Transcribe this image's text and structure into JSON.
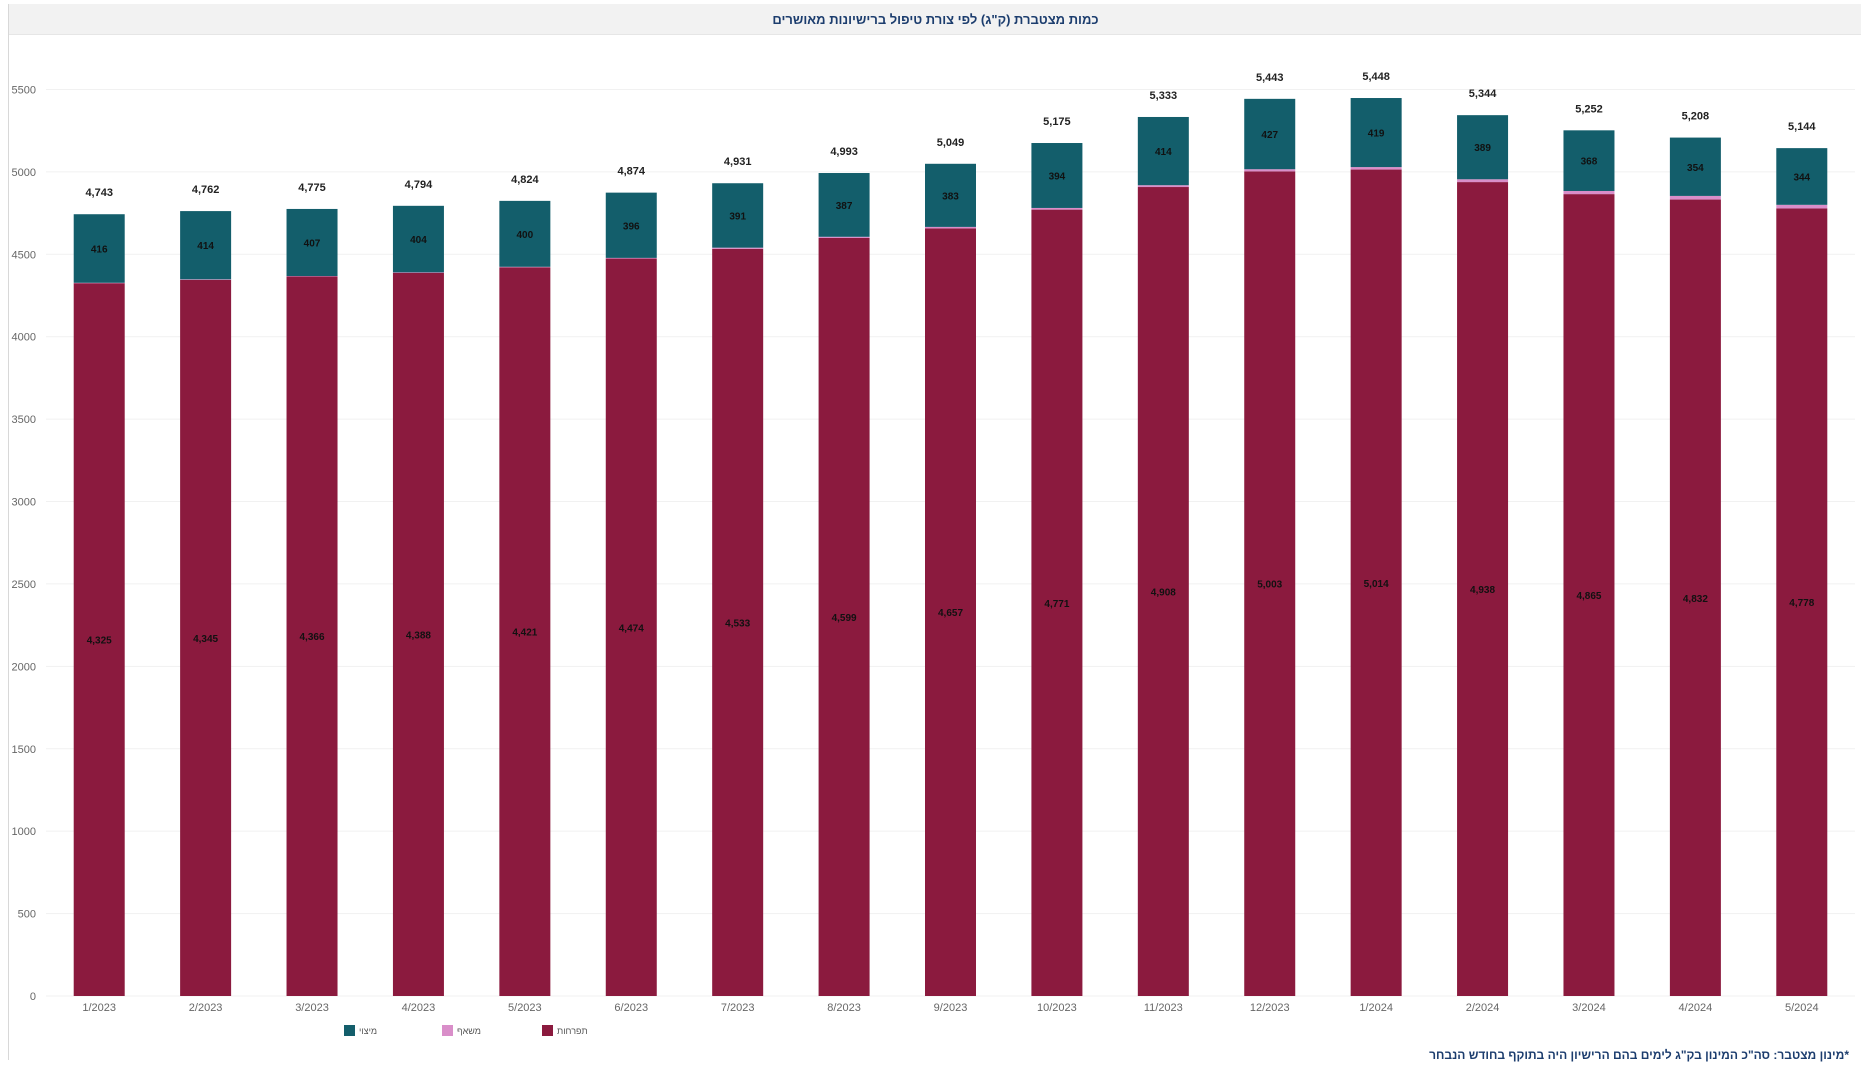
{
  "footnote": "*מינון מצטבר: סה\"כ המינון בק\"ג לימים בהם הרישיון היה בתוקף בחודש הנבחר",
  "chart_data": {
    "type": "bar",
    "stacked": true,
    "title": "כמות מצטברת (ק\"ג) לפי צורת טיפול ברישיונות מאושרים",
    "ylim": [
      0,
      5800
    ],
    "yticks": [
      0,
      500,
      1000,
      1500,
      2000,
      2500,
      3000,
      3500,
      4000,
      4500,
      5000,
      5500
    ],
    "grid": true,
    "legend_position": "bottom-left",
    "categories": [
      "1/2023",
      "2/2023",
      "3/2023",
      "4/2023",
      "5/2023",
      "6/2023",
      "7/2023",
      "8/2023",
      "9/2023",
      "10/2023",
      "11/2023",
      "12/2023",
      "1/2024",
      "2/2024",
      "3/2024",
      "4/2024",
      "5/2024"
    ],
    "series": [
      {
        "name": "תפרחות",
        "color": "#8b1a3e",
        "values": [
          4325,
          4345,
          4366,
          4388,
          4421,
          4474,
          4533,
          4599,
          4657,
          4771,
          4908,
          5003,
          5014,
          4938,
          4865,
          4832,
          4778
        ]
      },
      {
        "name": "משאף",
        "color": "#d98ec9",
        "values": [
          2,
          3,
          2,
          2,
          3,
          4,
          7,
          7,
          9,
          10,
          11,
          13,
          15,
          17,
          19,
          22,
          22
        ]
      },
      {
        "name": "מיצוי",
        "color": "#135e6b",
        "values": [
          416,
          414,
          407,
          404,
          400,
          396,
          391,
          387,
          383,
          394,
          414,
          427,
          419,
          389,
          368,
          354,
          344
        ]
      }
    ],
    "totals": [
      "4,743",
      "4,762",
      "4,775",
      "4,794",
      "4,824",
      "4,874",
      "4,931",
      "4,993",
      "5,049",
      "5,175",
      "5,333",
      "5,443",
      "5,448",
      "5,344",
      "5,252",
      "5,208",
      "5,144"
    ],
    "bottom_labels": [
      "4,325",
      "4,345",
      "4,366",
      "4,388",
      "4,421",
      "4,474",
      "4,533",
      "4,599",
      "4,657",
      "4,771",
      "4,908",
      "5,003",
      "5,014",
      "4,938",
      "4,865",
      "4,832",
      "4,778"
    ],
    "top_labels": [
      "416",
      "414",
      "407",
      "404",
      "400",
      "396",
      "391",
      "387",
      "383",
      "394",
      "414",
      "427",
      "419",
      "389",
      "368",
      "354",
      "344"
    ],
    "legend": [
      {
        "label": "מיצוי",
        "color": "#135e6b"
      },
      {
        "label": "משאף",
        "color": "#d98ec9"
      },
      {
        "label": "תפרחות",
        "color": "#8b1a3e"
      }
    ]
  }
}
